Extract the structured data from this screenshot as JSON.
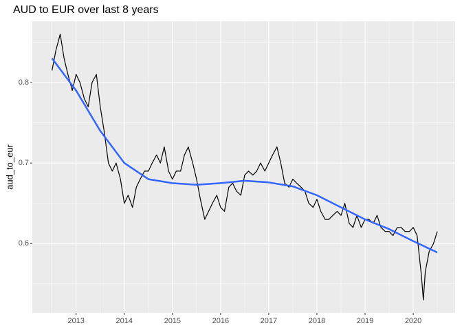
{
  "chart_data": {
    "type": "line",
    "title": "AUD to EUR over last 8 years",
    "y_label": "aud_to_eur",
    "xlim": [
      2012.09,
      2020.87
    ],
    "xticks": [
      2013,
      2014,
      2015,
      2016,
      2017,
      2018,
      2019,
      2020
    ],
    "ylim": [
      0.514,
      0.876
    ],
    "yticks": [
      0.6,
      0.7,
      0.8
    ],
    "grid": true,
    "background": "#ebebeb",
    "series": [
      {
        "name": "aud_to_eur",
        "color": "#000000",
        "width": 1.2,
        "x": [
          2012.5,
          2012.58,
          2012.67,
          2012.75,
          2012.83,
          2012.92,
          2013.0,
          2013.08,
          2013.17,
          2013.25,
          2013.33,
          2013.42,
          2013.5,
          2013.58,
          2013.67,
          2013.75,
          2013.83,
          2013.92,
          2014.0,
          2014.08,
          2014.17,
          2014.25,
          2014.33,
          2014.42,
          2014.5,
          2014.58,
          2014.67,
          2014.75,
          2014.83,
          2014.92,
          2015.0,
          2015.08,
          2015.17,
          2015.25,
          2015.33,
          2015.42,
          2015.5,
          2015.58,
          2015.67,
          2015.75,
          2015.83,
          2015.92,
          2016.0,
          2016.08,
          2016.17,
          2016.25,
          2016.33,
          2016.42,
          2016.5,
          2016.58,
          2016.67,
          2016.75,
          2016.83,
          2016.92,
          2017.0,
          2017.08,
          2017.17,
          2017.25,
          2017.33,
          2017.42,
          2017.5,
          2017.58,
          2017.67,
          2017.75,
          2017.83,
          2017.92,
          2018.0,
          2018.08,
          2018.17,
          2018.25,
          2018.33,
          2018.42,
          2018.5,
          2018.58,
          2018.67,
          2018.75,
          2018.83,
          2018.92,
          2019.0,
          2019.08,
          2019.17,
          2019.25,
          2019.33,
          2019.42,
          2019.5,
          2019.58,
          2019.67,
          2019.75,
          2019.83,
          2019.92,
          2020.0,
          2020.08,
          2020.17,
          2020.21,
          2020.25,
          2020.33,
          2020.42,
          2020.5
        ],
        "values": [
          0.815,
          0.84,
          0.86,
          0.83,
          0.81,
          0.79,
          0.81,
          0.8,
          0.78,
          0.77,
          0.8,
          0.81,
          0.77,
          0.74,
          0.7,
          0.69,
          0.7,
          0.68,
          0.65,
          0.66,
          0.645,
          0.67,
          0.68,
          0.69,
          0.69,
          0.7,
          0.71,
          0.7,
          0.72,
          0.69,
          0.68,
          0.69,
          0.69,
          0.71,
          0.72,
          0.7,
          0.68,
          0.655,
          0.63,
          0.64,
          0.65,
          0.66,
          0.645,
          0.64,
          0.67,
          0.675,
          0.665,
          0.66,
          0.685,
          0.69,
          0.685,
          0.69,
          0.7,
          0.69,
          0.7,
          0.71,
          0.72,
          0.7,
          0.675,
          0.67,
          0.68,
          0.675,
          0.67,
          0.665,
          0.65,
          0.645,
          0.655,
          0.64,
          0.63,
          0.63,
          0.635,
          0.64,
          0.635,
          0.65,
          0.625,
          0.62,
          0.635,
          0.62,
          0.63,
          0.63,
          0.625,
          0.635,
          0.62,
          0.615,
          0.615,
          0.61,
          0.62,
          0.62,
          0.615,
          0.615,
          0.62,
          0.61,
          0.56,
          0.53,
          0.565,
          0.59,
          0.6,
          0.615
        ]
      },
      {
        "name": "smooth",
        "color": "#3366ff",
        "width": 2.5,
        "x": [
          2012.5,
          2013.0,
          2013.5,
          2014.0,
          2014.5,
          2015.0,
          2015.5,
          2016.0,
          2016.5,
          2017.0,
          2017.5,
          2018.0,
          2018.5,
          2019.0,
          2019.5,
          2020.0,
          2020.5
        ],
        "values": [
          0.83,
          0.79,
          0.74,
          0.7,
          0.68,
          0.675,
          0.673,
          0.675,
          0.678,
          0.676,
          0.671,
          0.66,
          0.645,
          0.63,
          0.618,
          0.603,
          0.589
        ]
      }
    ]
  }
}
